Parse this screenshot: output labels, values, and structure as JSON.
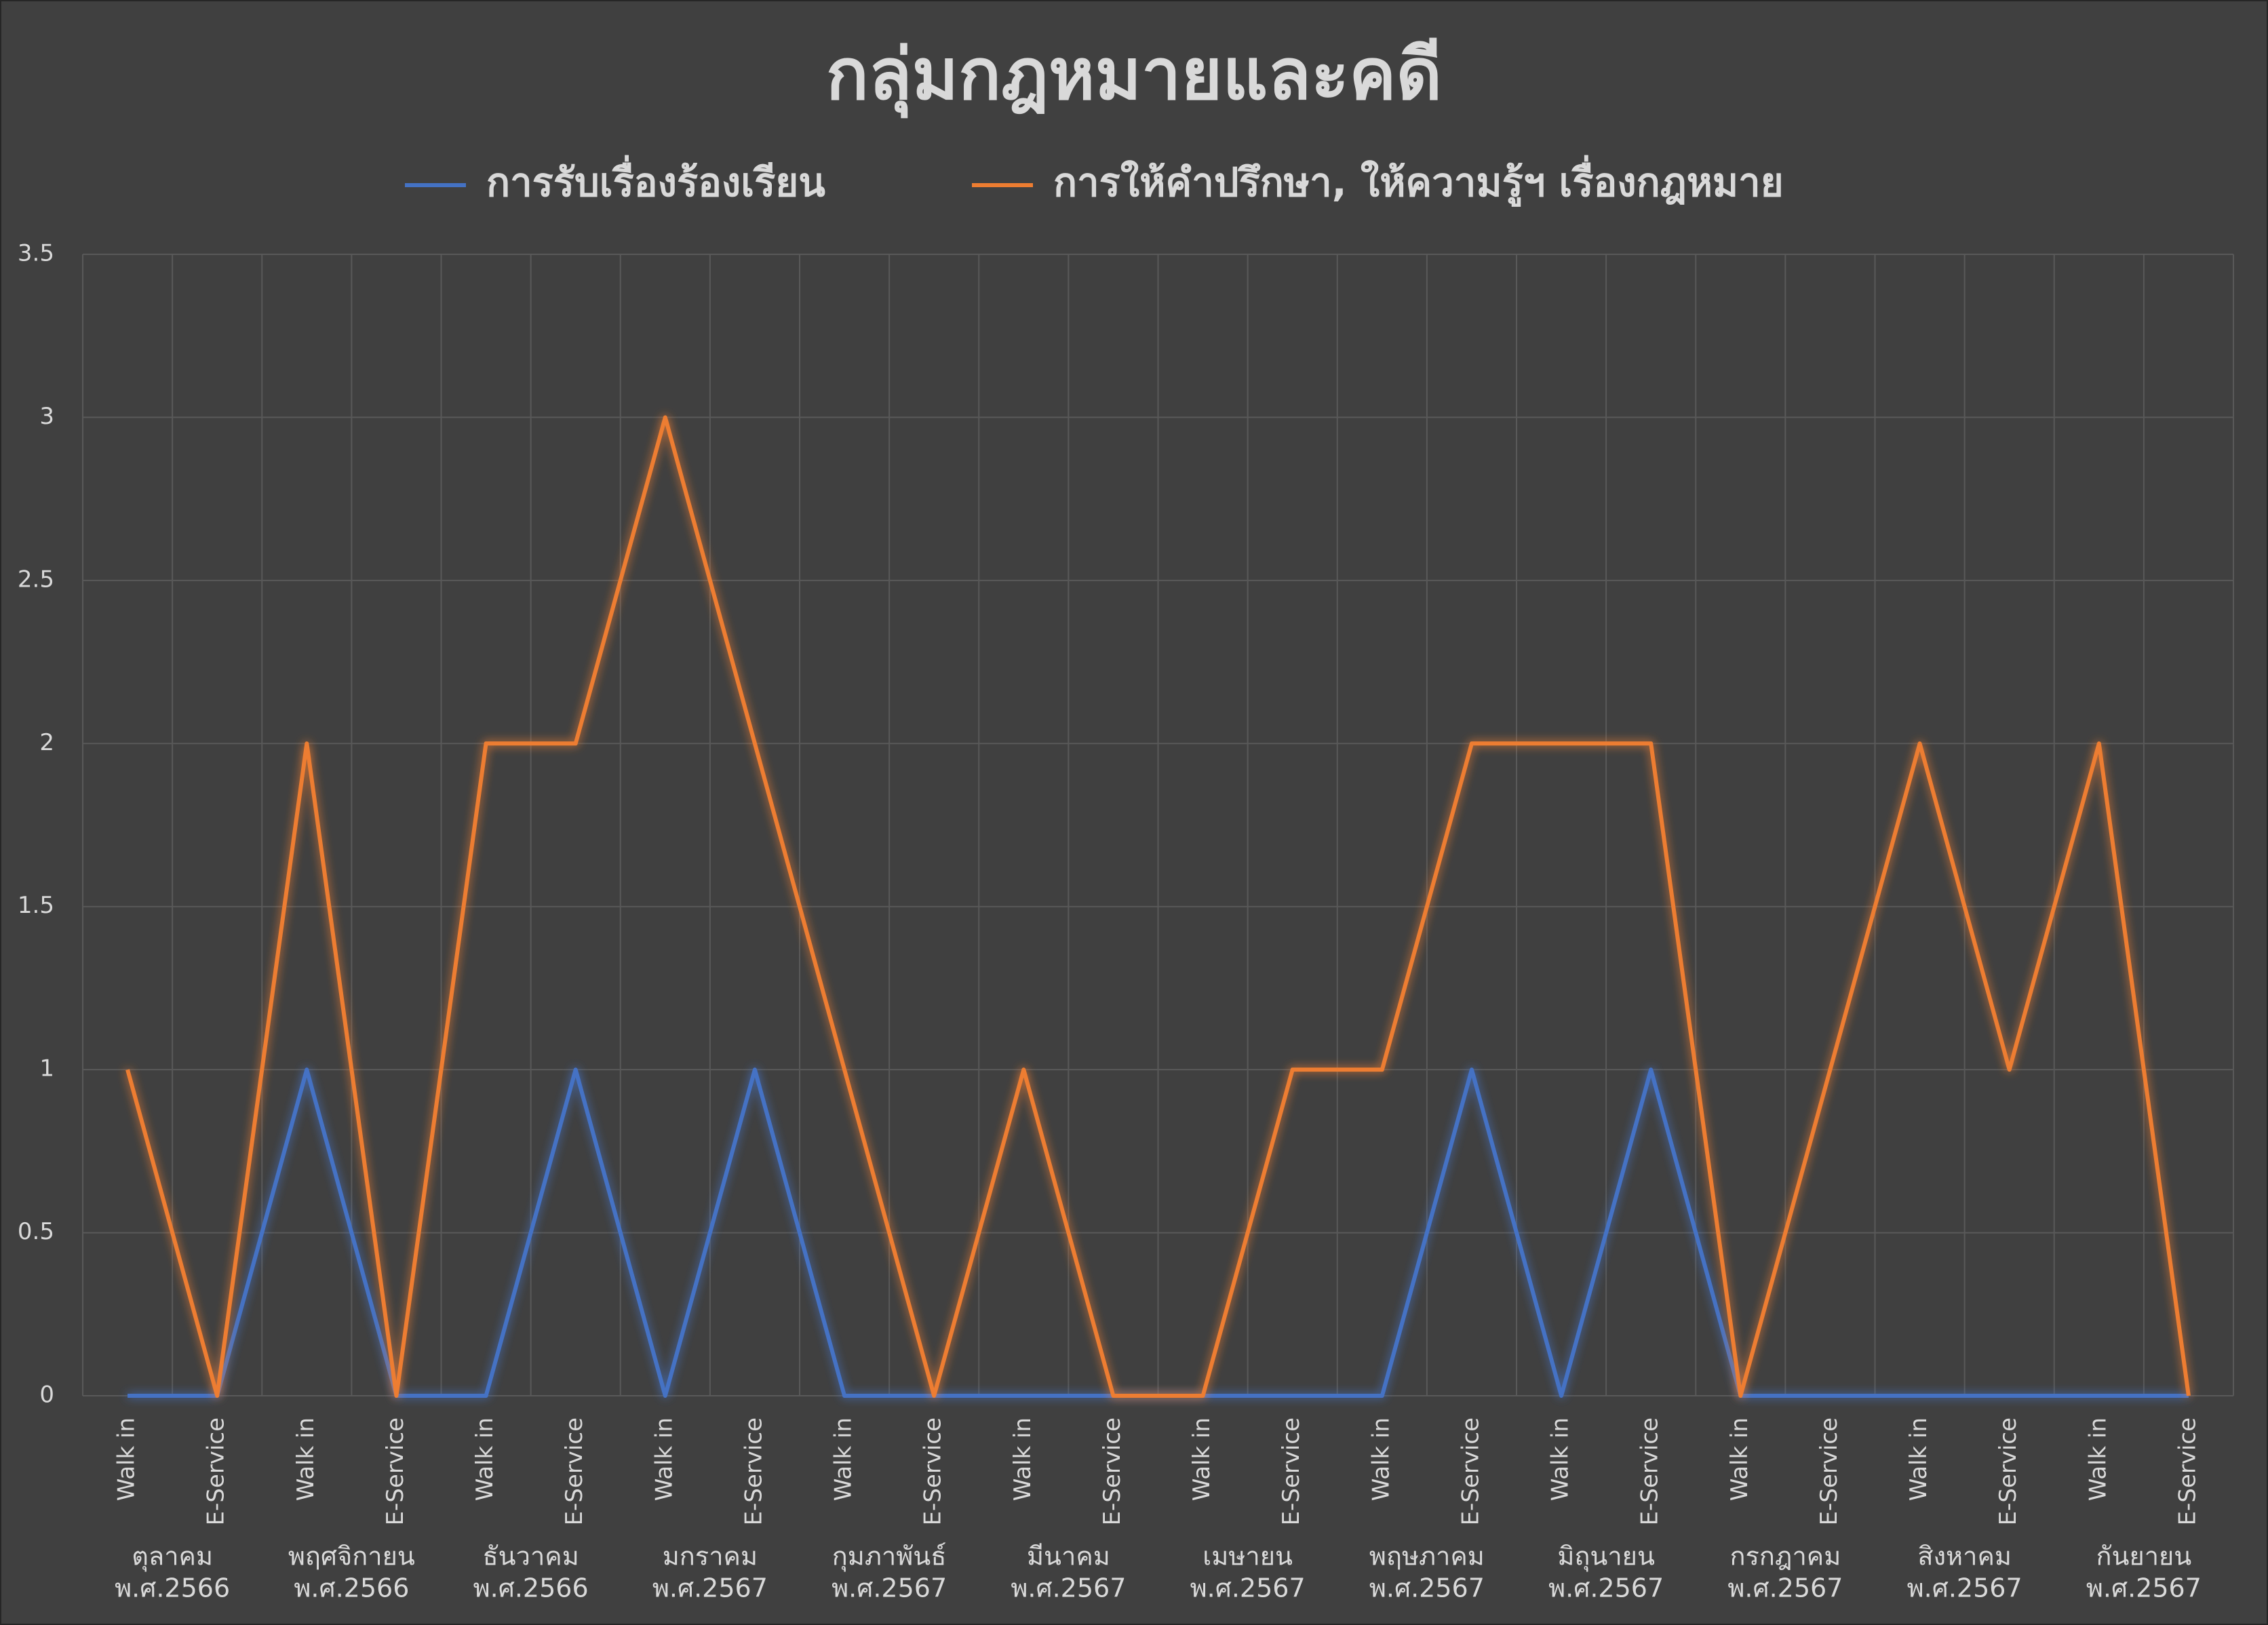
{
  "chart_data": {
    "type": "line",
    "title": "กลุ่มกฎหมายและคดี",
    "categories": [
      "Walk in",
      "E-Service",
      "Walk in",
      "E-Service",
      "Walk in",
      "E-Service",
      "Walk in",
      "E-Service",
      "Walk in",
      "E-Service",
      "Walk in",
      "E-Service",
      "Walk in",
      "E-Service",
      "Walk in",
      "E-Service",
      "Walk in",
      "E-Service",
      "Walk in",
      "E-Service",
      "Walk in",
      "E-Service",
      "Walk in",
      "E-Service"
    ],
    "groups": [
      [
        "ตุลาคม",
        "พ.ศ.2566"
      ],
      [
        "พฤศจิกายน",
        "พ.ศ.2566"
      ],
      [
        "ธันวาคม",
        "พ.ศ.2566"
      ],
      [
        "มกราคม",
        "พ.ศ.2567"
      ],
      [
        "กุมภาพันธ์",
        "พ.ศ.2567"
      ],
      [
        "มีนาคม",
        "พ.ศ.2567"
      ],
      [
        "เมษายน",
        "พ.ศ.2567"
      ],
      [
        "พฤษภาคม",
        "พ.ศ.2567"
      ],
      [
        "มิถุนายน",
        "พ.ศ.2567"
      ],
      [
        "กรกฎาคม",
        "พ.ศ.2567"
      ],
      [
        "สิงหาคม",
        "พ.ศ.2567"
      ],
      [
        "กันยายน",
        "พ.ศ.2567"
      ]
    ],
    "series": [
      {
        "name": "การรับเรื่องร้องเรียน",
        "color": "#4472c4",
        "values": [
          0,
          0,
          1,
          0,
          0,
          1,
          0,
          1,
          0,
          0,
          0,
          0,
          0,
          0,
          0,
          1,
          0,
          1,
          0,
          0,
          0,
          0,
          0,
          0
        ]
      },
      {
        "name": "การให้คำปรึกษา, ให้ความรู้ฯ เรื่องกฎหมาย",
        "color": "#ed7d31",
        "values": [
          1,
          0,
          2,
          0,
          2,
          2,
          3,
          2,
          1,
          0,
          1,
          0,
          0,
          1,
          1,
          2,
          2,
          2,
          0,
          1,
          2,
          1,
          2,
          0
        ]
      }
    ],
    "ylim": [
      0,
      3.5
    ],
    "yticks": [
      0,
      0.5,
      1,
      1.5,
      2,
      2.5,
      3,
      3.5
    ],
    "grid": true,
    "legend": "top"
  }
}
